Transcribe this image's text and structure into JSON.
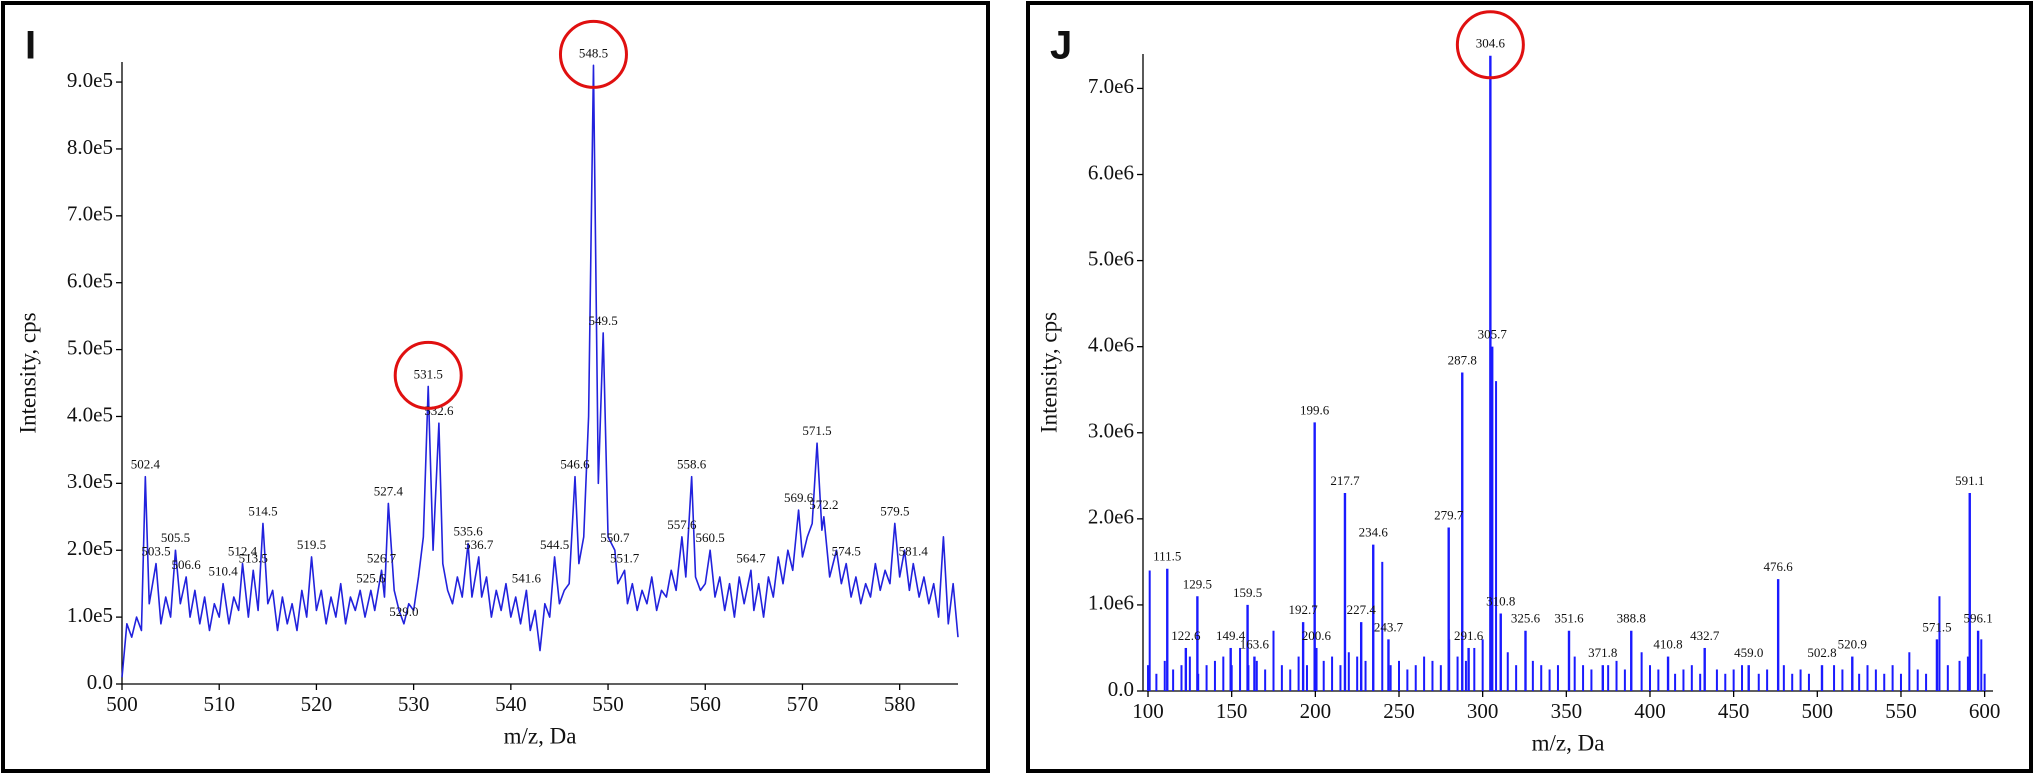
{
  "chart_data": [
    {
      "type": "line",
      "panel_label": "I",
      "xlabel": "m/z, Da",
      "ylabel": "Intensity, cps",
      "color": "#2222dd",
      "xlim": [
        500,
        586
      ],
      "ylim": [
        0,
        930000.0
      ],
      "xticks": [
        500,
        510,
        520,
        530,
        540,
        550,
        560,
        570,
        580
      ],
      "yticks": [
        {
          "value": 0,
          "label": "0.0"
        },
        {
          "value": 100000.0,
          "label": "1.0e5"
        },
        {
          "value": 200000.0,
          "label": "2.0e5"
        },
        {
          "value": 300000.0,
          "label": "3.0e5"
        },
        {
          "value": 400000.0,
          "label": "4.0e5"
        },
        {
          "value": 500000.0,
          "label": "5.0e5"
        },
        {
          "value": 600000.0,
          "label": "6.0e5"
        },
        {
          "value": 700000.0,
          "label": "7.0e5"
        },
        {
          "value": 800000.0,
          "label": "8.0e5"
        },
        {
          "value": 900000.0,
          "label": "9.0e5"
        }
      ],
      "x": [
        500,
        500.5,
        501,
        501.5,
        502,
        502.4,
        502.8,
        503.5,
        504,
        504.5,
        505,
        505.5,
        506,
        506.6,
        507,
        507.5,
        508,
        508.5,
        509,
        509.5,
        510,
        510.4,
        511,
        511.5,
        512,
        512.4,
        513,
        513.5,
        514,
        514.5,
        515,
        515.5,
        516,
        516.5,
        517,
        517.5,
        518,
        518.5,
        519,
        519.5,
        520,
        520.5,
        521,
        521.5,
        522,
        522.5,
        523,
        523.5,
        524,
        524.5,
        525,
        525.6,
        526,
        526.7,
        527,
        527.4,
        528,
        528.5,
        529,
        529.5,
        530,
        530.5,
        531,
        531.5,
        532,
        532.6,
        533,
        533.5,
        534,
        534.5,
        535,
        535.6,
        536,
        536.7,
        537,
        537.5,
        538,
        538.5,
        539,
        539.5,
        540,
        540.5,
        541,
        541.6,
        542,
        542.5,
        543,
        543.5,
        544,
        544.5,
        545,
        545.5,
        546,
        546.6,
        547,
        547.5,
        548,
        548.5,
        549,
        549.5,
        550,
        550.7,
        551,
        551.7,
        552,
        552.5,
        553,
        553.5,
        554,
        554.5,
        555,
        555.5,
        556,
        556.5,
        557,
        557.6,
        558,
        558.6,
        559,
        559.5,
        560,
        560.5,
        561,
        561.5,
        562,
        562.5,
        563,
        563.5,
        564,
        564.7,
        565,
        565.5,
        566,
        566.5,
        567,
        567.5,
        568,
        568.5,
        569,
        569.6,
        570,
        570.5,
        571,
        571.5,
        572,
        572.2,
        572.8,
        573.5,
        574,
        574.5,
        575,
        575.5,
        576,
        576.5,
        577,
        577.5,
        578,
        578.5,
        579,
        579.5,
        580,
        580.5,
        581,
        581.4,
        582,
        582.5,
        583,
        583.5,
        584,
        584.5,
        585,
        585.5,
        586
      ],
      "values": [
        10000.0,
        90000.0,
        70000.0,
        100000.0,
        80000.0,
        310000.0,
        120000.0,
        180000.0,
        90000.0,
        130000.0,
        100000.0,
        200000.0,
        120000.0,
        160000.0,
        100000.0,
        140000.0,
        90000.0,
        130000.0,
        80000.0,
        120000.0,
        100000.0,
        150000.0,
        90000.0,
        130000.0,
        110000.0,
        180000.0,
        100000.0,
        170000.0,
        110000.0,
        240000.0,
        120000.0,
        140000.0,
        80000.0,
        130000.0,
        90000.0,
        120000.0,
        80000.0,
        140000.0,
        100000.0,
        190000.0,
        110000.0,
        140000.0,
        90000.0,
        130000.0,
        100000.0,
        150000.0,
        90000.0,
        130000.0,
        110000.0,
        140000.0,
        100000.0,
        140000.0,
        110000.0,
        170000.0,
        130000.0,
        270000.0,
        140000.0,
        110000.0,
        90000.0,
        120000.0,
        110000.0,
        160000.0,
        220000.0,
        445000.0,
        200000.0,
        390000.0,
        180000.0,
        140000.0,
        120000.0,
        160000.0,
        130000.0,
        210000.0,
        130000.0,
        190000.0,
        130000.0,
        160000.0,
        100000.0,
        140000.0,
        110000.0,
        150000.0,
        100000.0,
        130000.0,
        90000.0,
        140000.0,
        80000.0,
        110000.0,
        50000.0,
        120000.0,
        100000.0,
        190000.0,
        120000.0,
        140000.0,
        150000.0,
        310000.0,
        180000.0,
        220000.0,
        400000.0,
        925000.0,
        300000.0,
        525000.0,
        220000.0,
        200000.0,
        150000.0,
        170000.0,
        120000.0,
        150000.0,
        110000.0,
        140000.0,
        120000.0,
        160000.0,
        110000.0,
        140000.0,
        130000.0,
        170000.0,
        140000.0,
        220000.0,
        160000.0,
        310000.0,
        160000.0,
        140000.0,
        150000.0,
        200000.0,
        130000.0,
        160000.0,
        110000.0,
        150000.0,
        100000.0,
        160000.0,
        120000.0,
        170000.0,
        110000.0,
        150000.0,
        100000.0,
        160000.0,
        130000.0,
        190000.0,
        150000.0,
        200000.0,
        170000.0,
        260000.0,
        190000.0,
        220000.0,
        240000.0,
        360000.0,
        230000.0,
        250000.0,
        160000.0,
        200000.0,
        150000.0,
        180000.0,
        130000.0,
        160000.0,
        120000.0,
        150000.0,
        130000.0,
        180000.0,
        140000.0,
        170000.0,
        150000.0,
        240000.0,
        160000.0,
        200000.0,
        140000.0,
        180000.0,
        130000.0,
        160000.0,
        120000.0,
        150000.0,
        100000.0,
        220000.0,
        90000.0,
        150000.0,
        70000.0
      ],
      "annotations": [
        {
          "label": "502.4",
          "x": 502.4,
          "y": 310000.0
        },
        {
          "label": "503.5",
          "x": 503.5,
          "y": 180000.0
        },
        {
          "label": "505.5",
          "x": 505.5,
          "y": 200000.0
        },
        {
          "label": "506.6",
          "x": 506.6,
          "y": 160000.0
        },
        {
          "label": "510.4",
          "x": 510.4,
          "y": 150000.0
        },
        {
          "label": "512.4",
          "x": 512.4,
          "y": 180000.0
        },
        {
          "label": "513.5",
          "x": 513.5,
          "y": 170000.0
        },
        {
          "label": "514.5",
          "x": 514.5,
          "y": 240000.0
        },
        {
          "label": "519.5",
          "x": 519.5,
          "y": 190000.0
        },
        {
          "label": "525.6",
          "x": 525.6,
          "y": 140000.0
        },
        {
          "label": "526.7",
          "x": 526.7,
          "y": 170000.0
        },
        {
          "label": "527.4",
          "x": 527.4,
          "y": 270000.0
        },
        {
          "label": "529.0",
          "x": 529.0,
          "y": 90000.0
        },
        {
          "label": "531.5",
          "x": 531.5,
          "y": 445000.0
        },
        {
          "label": "532.6",
          "x": 532.6,
          "y": 390000.0
        },
        {
          "label": "535.6",
          "x": 535.6,
          "y": 210000.0
        },
        {
          "label": "536.7",
          "x": 536.7,
          "y": 190000.0
        },
        {
          "label": "541.6",
          "x": 541.6,
          "y": 140000.0
        },
        {
          "label": "544.5",
          "x": 544.5,
          "y": 190000.0
        },
        {
          "label": "546.6",
          "x": 546.6,
          "y": 310000.0
        },
        {
          "label": "548.5",
          "x": 548.5,
          "y": 925000.0
        },
        {
          "label": "549.5",
          "x": 549.5,
          "y": 525000.0
        },
        {
          "label": "550.7",
          "x": 550.7,
          "y": 200000.0
        },
        {
          "label": "551.7",
          "x": 551.7,
          "y": 170000.0
        },
        {
          "label": "557.6",
          "x": 557.6,
          "y": 220000.0
        },
        {
          "label": "558.6",
          "x": 558.6,
          "y": 310000.0
        },
        {
          "label": "560.5",
          "x": 560.5,
          "y": 200000.0
        },
        {
          "label": "564.7",
          "x": 564.7,
          "y": 170000.0
        },
        {
          "label": "569.6",
          "x": 569.6,
          "y": 260000.0
        },
        {
          "label": "571.5",
          "x": 571.5,
          "y": 360000.0
        },
        {
          "label": "572.2",
          "x": 572.2,
          "y": 250000.0
        },
        {
          "label": "574.5",
          "x": 574.5,
          "y": 180000.0
        },
        {
          "label": "579.5",
          "x": 579.5,
          "y": 240000.0
        },
        {
          "label": "581.4",
          "x": 581.4,
          "y": 180000.0
        }
      ],
      "highlight": [
        13,
        20
      ],
      "highlight_color": "#e01010"
    },
    {
      "type": "stem",
      "panel_label": "J",
      "xlabel": "m/z, Da",
      "ylabel": "Intensity, cps",
      "color": "#1a1aff",
      "xlim": [
        97,
        605
      ],
      "ylim": [
        0,
        7400000.0
      ],
      "xticks": [
        100,
        150,
        200,
        250,
        300,
        350,
        400,
        450,
        500,
        550,
        600
      ],
      "yticks": [
        {
          "value": 0,
          "label": "0.0"
        },
        {
          "value": 1000000.0,
          "label": "1.0e6"
        },
        {
          "value": 2000000.0,
          "label": "2.0e6"
        },
        {
          "value": 3000000.0,
          "label": "3.0e6"
        },
        {
          "value": 4000000.0,
          "label": "4.0e6"
        },
        {
          "value": 5000000.0,
          "label": "5.0e6"
        },
        {
          "value": 6000000.0,
          "label": "6.0e6"
        },
        {
          "value": 7000000.0,
          "label": "7.0e6"
        }
      ],
      "x": [
        100,
        101,
        105,
        110,
        115,
        120,
        125,
        130,
        135,
        140,
        145,
        150,
        155,
        160,
        165,
        170,
        175,
        180,
        185,
        190,
        195,
        205,
        210,
        215,
        220,
        225,
        230,
        240,
        245,
        250,
        255,
        260,
        265,
        270,
        275,
        280,
        285,
        290,
        295,
        300,
        308,
        315,
        320,
        330,
        335,
        340,
        345,
        355,
        360,
        365,
        375,
        380,
        385,
        395,
        400,
        405,
        415,
        420,
        425,
        430,
        440,
        445,
        450,
        455,
        465,
        470,
        480,
        485,
        490,
        495,
        510,
        515,
        525,
        530,
        535,
        540,
        545,
        550,
        555,
        560,
        565,
        573,
        578,
        585,
        590,
        598,
        600
      ],
      "values": [
        300000.0,
        1400000.0,
        200000.0,
        350000.0,
        250000.0,
        300000.0,
        400000.0,
        200000.0,
        300000.0,
        350000.0,
        400000.0,
        300000.0,
        500000.0,
        300000.0,
        350000.0,
        250000.0,
        700000.0,
        300000.0,
        250000.0,
        400000.0,
        300000.0,
        350000.0,
        400000.0,
        300000.0,
        450000.0,
        400000.0,
        350000.0,
        1500000.0,
        300000.0,
        350000.0,
        250000.0,
        300000.0,
        400000.0,
        350000.0,
        300000.0,
        600000.0,
        400000.0,
        350000.0,
        500000.0,
        600000.0,
        3600000.0,
        450000.0,
        300000.0,
        350000.0,
        300000.0,
        250000.0,
        300000.0,
        400000.0,
        300000.0,
        250000.0,
        300000.0,
        350000.0,
        250000.0,
        450000.0,
        300000.0,
        250000.0,
        200000.0,
        250000.0,
        300000.0,
        200000.0,
        250000.0,
        200000.0,
        250000.0,
        300000.0,
        200000.0,
        250000.0,
        300000.0,
        200000.0,
        250000.0,
        200000.0,
        300000.0,
        250000.0,
        200000.0,
        300000.0,
        250000.0,
        200000.0,
        300000.0,
        200000.0,
        450000.0,
        250000.0,
        200000.0,
        1100000.0,
        300000.0,
        350000.0,
        400000.0,
        600000.0,
        200000.0
      ],
      "annotations": [
        {
          "label": "111.5",
          "x": 111.5,
          "y": 1420000.0
        },
        {
          "label": "122.6",
          "x": 122.6,
          "y": 500000.0
        },
        {
          "label": "129.5",
          "x": 129.5,
          "y": 1100000.0
        },
        {
          "label": "149.4",
          "x": 149.4,
          "y": 500000.0
        },
        {
          "label": "159.5",
          "x": 159.5,
          "y": 1000000.0
        },
        {
          "label": "163.6",
          "x": 163.6,
          "y": 400000.0
        },
        {
          "label": "192.7",
          "x": 192.7,
          "y": 800000.0
        },
        {
          "label": "199.6",
          "x": 199.6,
          "y": 3120000.0
        },
        {
          "label": "200.6",
          "x": 200.6,
          "y": 500000.0
        },
        {
          "label": "217.7",
          "x": 217.7,
          "y": 2300000.0
        },
        {
          "label": "227.4",
          "x": 227.4,
          "y": 800000.0
        },
        {
          "label": "234.6",
          "x": 234.6,
          "y": 1700000.0
        },
        {
          "label": "243.7",
          "x": 243.7,
          "y": 600000.0
        },
        {
          "label": "279.7",
          "x": 279.7,
          "y": 1900000.0
        },
        {
          "label": "287.8",
          "x": 287.8,
          "y": 3700000.0
        },
        {
          "label": "291.6",
          "x": 291.6,
          "y": 500000.0
        },
        {
          "label": "304.6",
          "x": 304.6,
          "y": 7380000.0
        },
        {
          "label": "305.7",
          "x": 305.7,
          "y": 4000000.0
        },
        {
          "label": "310.8",
          "x": 310.8,
          "y": 900000.0
        },
        {
          "label": "325.6",
          "x": 325.6,
          "y": 700000.0
        },
        {
          "label": "351.6",
          "x": 351.6,
          "y": 700000.0
        },
        {
          "label": "371.8",
          "x": 371.8,
          "y": 300000.0
        },
        {
          "label": "388.8",
          "x": 388.8,
          "y": 700000.0
        },
        {
          "label": "410.8",
          "x": 410.8,
          "y": 400000.0
        },
        {
          "label": "432.7",
          "x": 432.7,
          "y": 500000.0
        },
        {
          "label": "459.0",
          "x": 459.0,
          "y": 300000.0
        },
        {
          "label": "476.6",
          "x": 476.6,
          "y": 1300000.0
        },
        {
          "label": "502.8",
          "x": 502.8,
          "y": 300000.0
        },
        {
          "label": "520.9",
          "x": 520.9,
          "y": 400000.0
        },
        {
          "label": "571.5",
          "x": 571.5,
          "y": 600000.0
        },
        {
          "label": "591.1",
          "x": 591.1,
          "y": 2300000.0
        },
        {
          "label": "596.1",
          "x": 596.1,
          "y": 700000.0
        }
      ],
      "highlight": [
        16
      ],
      "highlight_color": "#e01010"
    }
  ]
}
